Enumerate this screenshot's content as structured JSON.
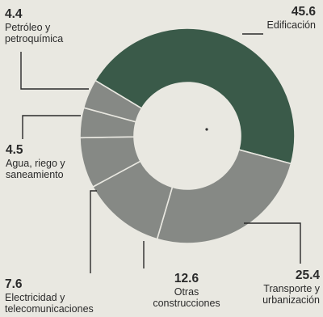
{
  "chart_data": {
    "type": "pie",
    "donut": true,
    "colors": {
      "edificacion": "#3a5a49",
      "others": "#868985",
      "center": "#e9e8e1",
      "border": "#e9e8e1",
      "leader": "#2a2a2a"
    },
    "slices": [
      {
        "label": "Edificación",
        "value": 45.6,
        "value_text": "45.6"
      },
      {
        "label": "Transporte y\nurbanización",
        "value": 25.4,
        "value_text": "25.4"
      },
      {
        "label": "Otras\nconstrucciones",
        "value": 12.6,
        "value_text": "12.6"
      },
      {
        "label": "Electricidad y\ntelecomunicaciones",
        "value": 7.6,
        "value_text": "7.6"
      },
      {
        "label": "Agua, riego y\nsaneamiento",
        "value": 4.5,
        "value_text": "4.5"
      },
      {
        "label": "Petróleo y\npetroquímica",
        "value": 4.4,
        "value_text": "4.4"
      }
    ]
  }
}
